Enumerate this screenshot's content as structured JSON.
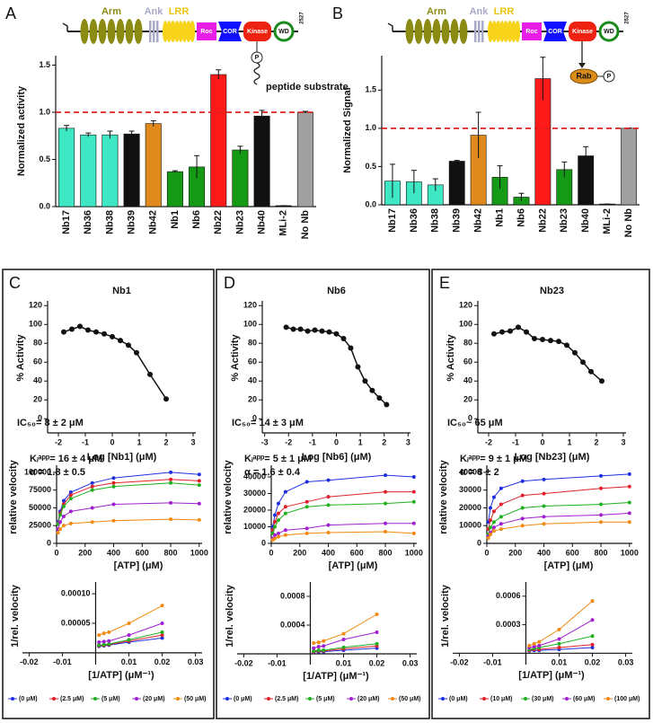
{
  "panels": [
    "A",
    "B",
    "C",
    "D",
    "E"
  ],
  "diagrams": [
    {
      "domains": [
        "Arm",
        "Ank",
        "LRR",
        "Roc",
        "COR",
        "Kinase",
        "WD"
      ],
      "end": "2527",
      "phospho": "P",
      "substrate": "peptide substrate"
    },
    {
      "domains": [
        "Arm",
        "Ank",
        "LRR",
        "Roc",
        "COR",
        "Kinase",
        "WD"
      ],
      "end": "2527",
      "phospho": "P",
      "substrate": "Rab"
    }
  ],
  "chart_data": [
    {
      "type": "bar",
      "ylabel": "Normalized activity",
      "categories": [
        "Nb17",
        "Nb36",
        "Nb38",
        "Nb39",
        "Nb42",
        "Nb1",
        "Nb6",
        "Nb22",
        "Nb23",
        "Nb40",
        "MLi-2",
        "No Nb"
      ],
      "values": [
        0.83,
        0.76,
        0.76,
        0.77,
        0.88,
        0.37,
        0.42,
        1.4,
        0.6,
        0.96,
        0.01,
        1.0
      ],
      "errors": [
        0.03,
        0.02,
        0.04,
        0.03,
        0.03,
        0.01,
        0.12,
        0.05,
        0.04,
        0.06,
        0,
        0.01
      ],
      "colors": [
        "#3ee8c4",
        "#3ee8c4",
        "#3ee8c4",
        "#111111",
        "#e0891c",
        "#159a15",
        "#159a15",
        "#ff1a1a",
        "#159a15",
        "#111111",
        "#111111",
        "#a0a0a0"
      ],
      "ref_line": 1,
      "ylim": [
        0,
        1.6
      ],
      "yticks": [
        {
          "value": 0,
          "label": "0.0"
        },
        0.5,
        {
          "value": 1,
          "label": "1.0"
        },
        1.5
      ]
    },
    {
      "type": "bar",
      "ylabel": "Normalized  Signal",
      "categories": [
        "Nb17",
        "Nb36",
        "Nb38",
        "Nb39",
        "Nb42",
        "Nb1",
        "Nb6",
        "Nb22",
        "Nb23",
        "Nb40",
        "MLi-2",
        "No Nb"
      ],
      "values": [
        0.31,
        0.3,
        0.26,
        0.57,
        0.91,
        0.36,
        0.1,
        1.65,
        0.46,
        0.64,
        0.01,
        1.0
      ],
      "errors": [
        0.22,
        0.15,
        0.08,
        0.01,
        0.3,
        0.15,
        0.05,
        0.28,
        0.1,
        0.12,
        0,
        0.005
      ],
      "colors": [
        "#3ee8c4",
        "#3ee8c4",
        "#3ee8c4",
        "#111111",
        "#e0891c",
        "#159a15",
        "#159a15",
        "#ff1a1a",
        "#159a15",
        "#111111",
        "#111111",
        "#a0a0a0"
      ],
      "ref_line": 1,
      "ylim": [
        0,
        1.95
      ],
      "yticks": [
        {
          "value": 0,
          "label": "0.0"
        },
        0.5,
        {
          "value": 1,
          "label": "1.0"
        },
        1.5
      ]
    },
    {
      "type": "scatter",
      "title": "Nb1",
      "xlabel": "Log [Nb1] (μM)",
      "ylabel": "% Activity",
      "annotation": "IC₅₀= 8 ± 2  μM",
      "color": "#111111",
      "x": [
        -1.8,
        -1.5,
        -1.2,
        -0.9,
        -0.6,
        -0.3,
        0,
        0.3,
        0.6,
        0.9,
        1.4,
        2.0
      ],
      "values": [
        92,
        95,
        98,
        94,
        92,
        90,
        87,
        83,
        78,
        70,
        47,
        21
      ],
      "xlim": [
        -2.4,
        3.1
      ],
      "ylim": [
        -15,
        125
      ],
      "xticks": [
        -2,
        -1,
        0,
        1,
        2,
        3
      ],
      "yticks": [
        0,
        20,
        40,
        60,
        80,
        100,
        120
      ]
    },
    {
      "type": "scatter",
      "title": "Nb6",
      "xlabel": "Log [Nb6] (μM)",
      "ylabel": "% Activity",
      "annotation": "IC₅₀= 14 ± 3  μM",
      "color": "#111111",
      "x": [
        -2.1,
        -1.8,
        -1.5,
        -1.2,
        -0.9,
        -0.6,
        -0.3,
        0,
        0.3,
        0.6,
        0.9,
        1.2,
        1.5,
        1.8,
        2.1
      ],
      "values": [
        97,
        95,
        95,
        93,
        94,
        93,
        92,
        90,
        85,
        75,
        55,
        40,
        30,
        22,
        15
      ],
      "xlim": [
        -3.1,
        3.1
      ],
      "ylim": [
        -15,
        125
      ],
      "xticks": [
        -3,
        -2,
        -1,
        0,
        1,
        2,
        3
      ],
      "yticks": [
        0,
        20,
        40,
        60,
        80,
        100,
        120
      ]
    },
    {
      "type": "scatter",
      "title": "Nb23",
      "xlabel": "Log [Nb23] (μM)",
      "ylabel": "% Activity",
      "annotation": "IC₅₀~ 65  μM",
      "color": "#111111",
      "x": [
        -1.8,
        -1.5,
        -1.2,
        -0.9,
        -0.6,
        -0.3,
        0,
        0.3,
        0.6,
        0.9,
        1.2,
        1.5,
        1.8,
        2.2
      ],
      "values": [
        90,
        92,
        93,
        97,
        92,
        85,
        84,
        83,
        82,
        78,
        70,
        60,
        50,
        40
      ],
      "xlim": [
        -2.4,
        3.1
      ],
      "ylim": [
        -15,
        125
      ],
      "xticks": [
        -2,
        -1,
        0,
        1,
        2,
        3
      ],
      "yticks": [
        0,
        20,
        40,
        60,
        80,
        100,
        120
      ]
    },
    {
      "type": "line",
      "annotations": [
        "Kᵢᵃᵖᵖ= 16 ± 4  μM",
        "α = 1.8 ± 0.5"
      ],
      "xlabel": "[ATP] (μM)",
      "ylabel": "relative velocity",
      "x": [
        10,
        25,
        50,
        100,
        250,
        400,
        800,
        1000
      ],
      "series": [
        {
          "color": "#1f2fe0",
          "values": [
            30000,
            45000,
            60000,
            72000,
            85000,
            92000,
            100000,
            97000
          ]
        },
        {
          "color": "#e0202a",
          "values": [
            28000,
            42000,
            55000,
            68000,
            80000,
            85000,
            90000,
            88000
          ]
        },
        {
          "color": "#20b020",
          "values": [
            27000,
            40000,
            52000,
            63000,
            75000,
            80000,
            85000,
            82000
          ]
        },
        {
          "color": "#a020d0",
          "values": [
            20000,
            30000,
            38000,
            45000,
            50000,
            55000,
            57000,
            56000
          ]
        },
        {
          "color": "#f08a10",
          "values": [
            15000,
            20000,
            25000,
            28000,
            30000,
            32000,
            34000,
            33000
          ]
        }
      ],
      "xlim": [
        0,
        1020
      ],
      "ylim": [
        0,
        110000
      ],
      "xticks": [
        0,
        200,
        400,
        600,
        800,
        1000
      ],
      "yticks": [
        0,
        25000,
        50000,
        75000,
        100000
      ]
    },
    {
      "type": "line",
      "annotations": [
        "Kᵢᵃᵖᵖ= 5 ± 1  μM",
        "α = 1.6 ± 0.4"
      ],
      "xlabel": "[ATP] (μM)",
      "ylabel": "relative velocity",
      "x": [
        10,
        25,
        50,
        100,
        250,
        400,
        800,
        1000
      ],
      "series": [
        {
          "color": "#1f2fe0",
          "values": [
            10000,
            17000,
            24000,
            31000,
            37000,
            38000,
            41000,
            40000
          ]
        },
        {
          "color": "#e0202a",
          "values": [
            8000,
            13000,
            18000,
            22000,
            25000,
            28000,
            31000,
            31000
          ]
        },
        {
          "color": "#20b020",
          "values": [
            6000,
            10000,
            14000,
            18000,
            22000,
            23000,
            24000,
            25000
          ]
        },
        {
          "color": "#a020d0",
          "values": [
            3000,
            5000,
            6000,
            8000,
            9000,
            11000,
            12000,
            12000
          ]
        },
        {
          "color": "#f08a10",
          "values": [
            2000,
            3000,
            4000,
            5000,
            6000,
            6500,
            7000,
            6000
          ]
        }
      ],
      "xlim": [
        0,
        1020
      ],
      "ylim": [
        0,
        47000
      ],
      "xticks": [
        0,
        200,
        400,
        600,
        800,
        1000
      ],
      "yticks": [
        0,
        10000,
        20000,
        30000,
        40000
      ]
    },
    {
      "type": "line",
      "annotations": [
        "Kᵢᵃᵖᵖ= 9 ± 1  μM",
        "α = 8 ± 2"
      ],
      "xlabel": "[ATP] (μM)",
      "ylabel": "relative velocity",
      "x": [
        10,
        25,
        50,
        100,
        250,
        400,
        800,
        1000
      ],
      "series": [
        {
          "color": "#1f2fe0",
          "values": [
            12000,
            20000,
            26000,
            31000,
            35000,
            36000,
            38000,
            39000
          ]
        },
        {
          "color": "#e0202a",
          "values": [
            8000,
            13000,
            18000,
            22000,
            27000,
            28000,
            31000,
            32000
          ]
        },
        {
          "color": "#20b020",
          "values": [
            5000,
            9000,
            12000,
            15000,
            20000,
            21000,
            22000,
            23000
          ]
        },
        {
          "color": "#a020d0",
          "values": [
            4000,
            6000,
            9000,
            11000,
            14000,
            15000,
            16000,
            17000
          ]
        },
        {
          "color": "#f08a10",
          "values": [
            3000,
            5000,
            7000,
            8000,
            10000,
            11000,
            12000,
            12000
          ]
        }
      ],
      "xlim": [
        0,
        1020
      ],
      "ylim": [
        0,
        44000
      ],
      "xticks": [
        0,
        200,
        400,
        600,
        800,
        1000
      ],
      "yticks": [
        0,
        10000,
        20000,
        30000,
        40000
      ]
    },
    {
      "type": "line",
      "axes_at_zero": true,
      "legend": "bottom",
      "xlabel": "[1/ATP] (μM⁻¹)",
      "ylabel": "1/rel. velocity",
      "x": [
        0.001,
        0.0025,
        0.004,
        0.01,
        0.02
      ],
      "series": [
        {
          "name": "(0 μM)",
          "color": "#1f2fe0",
          "values": [
            1.1e-05,
            1.2e-05,
            1.3e-05,
            1.8e-05,
            2.5e-05
          ]
        },
        {
          "name": "(2.5 μM)",
          "color": "#e0202a",
          "values": [
            1.2e-05,
            1.3e-05,
            1.4e-05,
            2e-05,
            3e-05
          ]
        },
        {
          "name": "(5 μM)",
          "color": "#20b020",
          "values": [
            1.3e-05,
            1.4e-05,
            1.5e-05,
            2.2e-05,
            3.5e-05
          ]
        },
        {
          "name": "(20 μM)",
          "color": "#a020d0",
          "values": [
            1.8e-05,
            1.9e-05,
            2e-05,
            3e-05,
            5e-05
          ]
        },
        {
          "name": "(50 μM)",
          "color": "#f08a10",
          "values": [
            3e-05,
            3.3e-05,
            3.5e-05,
            5e-05,
            8e-05
          ]
        }
      ],
      "xlim": [
        -0.022,
        0.032
      ],
      "ylim": [
        -2e-05,
        0.00012
      ],
      "xticks": [
        -0.02,
        -0.01,
        0.01,
        0.02,
        0.03
      ],
      "yticks": [
        5e-05,
        {
          "value": 0.0001,
          "label": "0.00010"
        }
      ]
    },
    {
      "type": "line",
      "axes_at_zero": true,
      "legend": "bottom",
      "xlabel": "[1/ATP] (μM⁻¹)",
      "ylabel": "1/rel. velocity",
      "x": [
        0.001,
        0.0025,
        0.004,
        0.01,
        0.02
      ],
      "series": [
        {
          "name": "(0 μM)",
          "color": "#1f2fe0",
          "values": [
            2.5e-05,
            3e-05,
            3e-05,
            5e-05,
            8e-05
          ]
        },
        {
          "name": "(2.5 μM)",
          "color": "#e0202a",
          "values": [
            3e-05,
            4e-05,
            4e-05,
            7e-05,
            0.00011
          ]
        },
        {
          "name": "(5 μM)",
          "color": "#20b020",
          "values": [
            4e-05,
            5e-05,
            5e-05,
            9e-05,
            0.00014
          ]
        },
        {
          "name": "(20 μM)",
          "color": "#a020d0",
          "values": [
            8e-05,
            0.0001,
            0.00011,
            0.0002,
            0.0003
          ]
        },
        {
          "name": "(50 μM)",
          "color": "#f08a10",
          "values": [
            0.00015,
            0.00016,
            0.00018,
            0.00028,
            0.00055
          ]
        }
      ],
      "xlim": [
        -0.022,
        0.032
      ],
      "ylim": [
        -0.00015,
        0.001
      ],
      "xticks": [
        -0.02,
        -0.01,
        0.01,
        0.02,
        0.03
      ],
      "yticks": [
        0.0004,
        0.0008
      ]
    },
    {
      "type": "line",
      "axes_at_zero": true,
      "legend": "bottom",
      "xlabel": "[1/ATP] (μM⁻¹)",
      "ylabel": "1/rel. velocity",
      "x": [
        0.001,
        0.0025,
        0.004,
        0.01,
        0.02
      ],
      "series": [
        {
          "name": "(0 μM)",
          "color": "#1f2fe0",
          "values": [
            2.5e-05,
            3e-05,
            3e-05,
            4e-05,
            6e-05
          ]
        },
        {
          "name": "(10 μM)",
          "color": "#e0202a",
          "values": [
            3e-05,
            4e-05,
            4e-05,
            6e-05,
            9e-05
          ]
        },
        {
          "name": "(30 μM)",
          "color": "#20b020",
          "values": [
            4e-05,
            5e-05,
            6e-05,
            0.0001,
            0.00018
          ]
        },
        {
          "name": "(60 μM)",
          "color": "#a020d0",
          "values": [
            6e-05,
            7e-05,
            8e-05,
            0.00015,
            0.00035
          ]
        },
        {
          "name": "(100 μM)",
          "color": "#f08a10",
          "values": [
            8e-05,
            0.0001,
            0.00012,
            0.00025,
            0.00055
          ]
        }
      ],
      "xlim": [
        -0.022,
        0.032
      ],
      "ylim": [
        -0.00012,
        0.00075
      ],
      "xticks": [
        -0.02,
        -0.01,
        0.01,
        0.02,
        0.03
      ],
      "yticks": [
        0.0003,
        0.0006
      ]
    }
  ]
}
